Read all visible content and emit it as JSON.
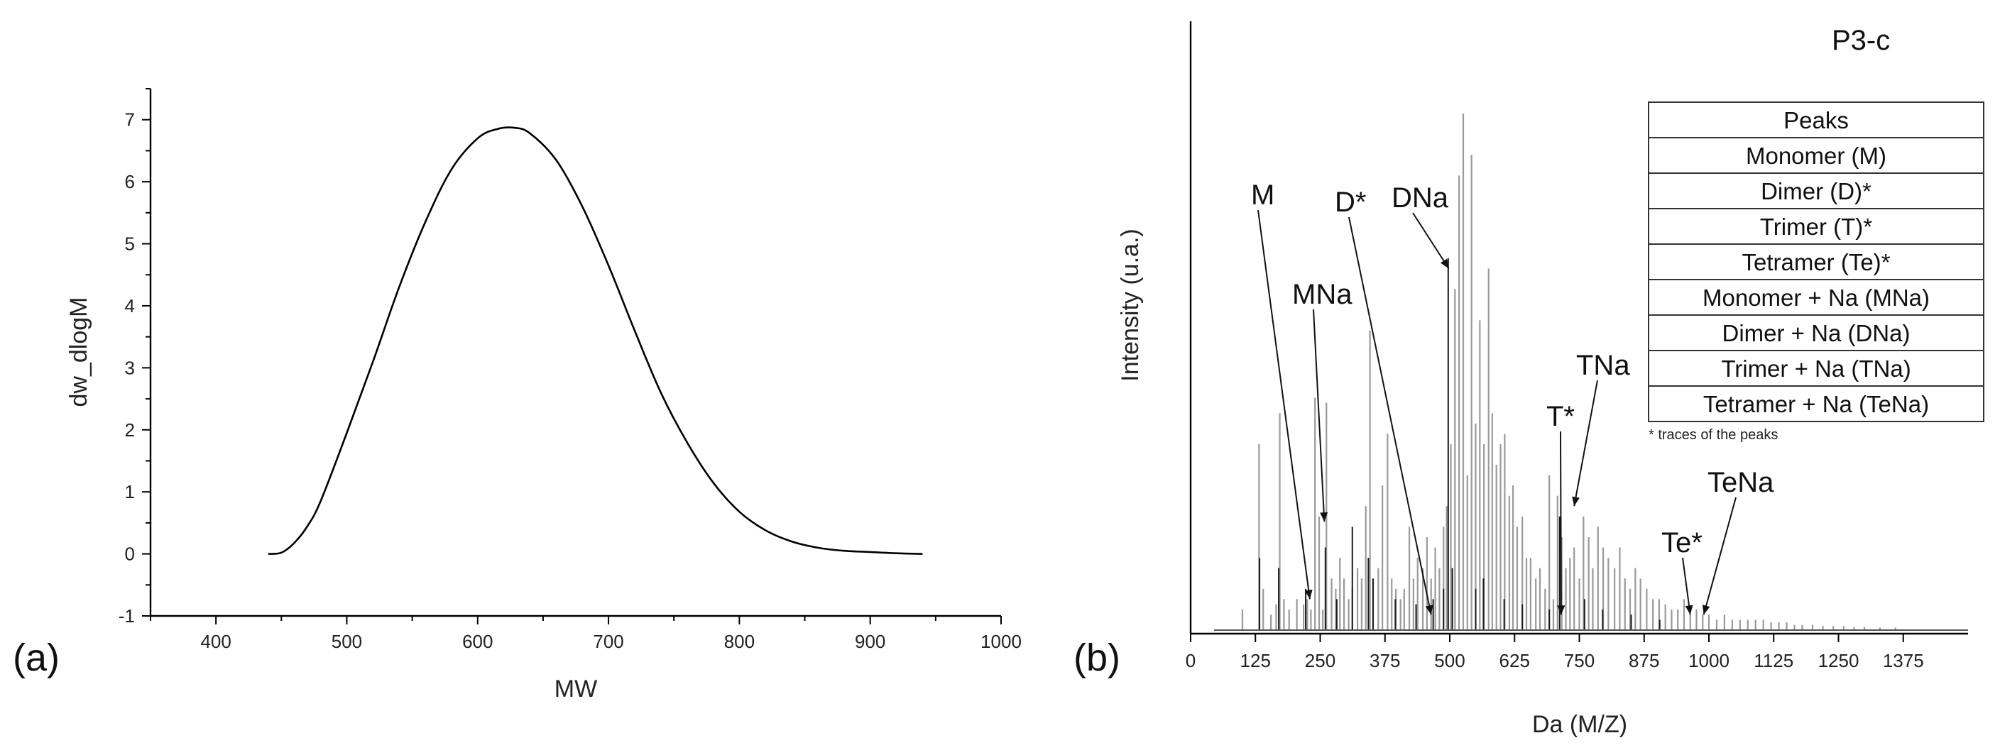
{
  "chart_data": [
    {
      "type": "line",
      "panel_label": "(a)",
      "title": "",
      "xlabel": "MW",
      "ylabel": "dw_dlogM",
      "xlim": [
        350,
        1000
      ],
      "ylim": [
        -1,
        7.5
      ],
      "xticks": [
        "400",
        "500",
        "600",
        "700",
        "800",
        "900",
        "1000"
      ],
      "yticks": [
        "-1",
        "0",
        "1",
        "2",
        "3",
        "4",
        "5",
        "6",
        "7"
      ],
      "series": [
        {
          "name": "dw_dlogM",
          "x": [
            440,
            450,
            460,
            470,
            480,
            500,
            520,
            540,
            560,
            580,
            600,
            615,
            628,
            640,
            660,
            680,
            700,
            720,
            740,
            760,
            780,
            800,
            820,
            840,
            860,
            880,
            900,
            920,
            940
          ],
          "y": [
            0.0,
            0.02,
            0.18,
            0.45,
            0.85,
            1.95,
            3.1,
            4.3,
            5.35,
            6.2,
            6.7,
            6.85,
            6.87,
            6.78,
            6.35,
            5.6,
            4.65,
            3.6,
            2.6,
            1.8,
            1.15,
            0.68,
            0.38,
            0.2,
            0.1,
            0.05,
            0.03,
            0.01,
            0.0
          ]
        }
      ]
    },
    {
      "type": "bar",
      "panel_label": "(b)",
      "title": "P3-c",
      "xlabel": "Da (M/Z)",
      "ylabel": "Intensity (u.a.)",
      "xlim": [
        0,
        1500
      ],
      "ylim": [
        0,
        100
      ],
      "xticks": [
        "0",
        "125",
        "250",
        "375",
        "500",
        "625",
        "750",
        "875",
        "1000",
        "1125",
        "1250",
        "1375"
      ],
      "x": [
        100,
        132,
        140,
        155,
        165,
        172,
        180,
        190,
        205,
        218,
        225,
        232,
        240,
        248,
        255,
        262,
        272,
        280,
        288,
        296,
        305,
        312,
        322,
        330,
        338,
        346,
        352,
        362,
        370,
        380,
        388,
        396,
        405,
        412,
        422,
        430,
        438,
        448,
        456,
        464,
        472,
        480,
        488,
        494,
        502,
        510,
        518,
        526,
        534,
        542,
        550,
        558,
        566,
        575,
        582,
        590,
        598,
        606,
        615,
        622,
        630,
        640,
        648,
        656,
        666,
        674,
        684,
        692,
        700,
        708,
        716,
        724,
        732,
        740,
        750,
        758,
        768,
        776,
        786,
        796,
        806,
        818,
        828,
        838,
        848,
        858,
        868,
        880,
        892,
        904,
        916,
        928,
        940,
        952,
        964,
        976,
        988,
        1000,
        1015,
        1030,
        1045,
        1060,
        1075,
        1090,
        1105,
        1120,
        1135,
        1150,
        1165,
        1180,
        1200,
        1220,
        1240,
        1260,
        1280,
        1300,
        1330,
        1360
      ],
      "values": [
        4,
        36,
        8,
        3,
        5,
        42,
        6,
        4,
        6,
        5,
        6,
        4,
        45,
        22,
        4,
        44,
        10,
        8,
        14,
        10,
        6,
        8,
        12,
        10,
        24,
        58,
        10,
        12,
        28,
        38,
        10,
        8,
        6,
        8,
        20,
        10,
        14,
        12,
        18,
        10,
        16,
        12,
        20,
        24,
        36,
        66,
        88,
        100,
        30,
        92,
        40,
        60,
        36,
        70,
        42,
        32,
        36,
        38,
        26,
        28,
        20,
        22,
        14,
        14,
        10,
        12,
        8,
        30,
        6,
        26,
        18,
        12,
        14,
        16,
        10,
        22,
        18,
        12,
        20,
        16,
        14,
        12,
        16,
        10,
        8,
        12,
        10,
        8,
        6,
        6,
        5,
        4,
        4,
        6,
        3,
        4,
        3,
        3,
        2,
        3,
        2,
        2,
        2,
        2,
        2,
        1.5,
        1.5,
        1.5,
        1,
        1,
        1,
        0.8,
        0.8,
        0.8,
        0.6,
        0.6,
        0.5,
        0.5
      ],
      "dark_x": [
        133,
        170,
        222,
        260,
        282,
        312,
        343,
        352,
        395,
        435,
        468,
        488,
        497,
        505,
        550,
        565,
        605,
        640,
        692,
        712,
        760,
        795,
        850,
        905
      ],
      "dark_values": [
        14,
        12,
        8,
        16,
        6,
        20,
        14,
        10,
        6,
        5,
        6,
        8,
        72,
        12,
        8,
        10,
        6,
        5,
        4,
        22,
        6,
        4,
        3,
        2
      ],
      "annotations": [
        {
          "label": "M",
          "x": 230,
          "y": 6
        },
        {
          "label": "MNa",
          "x": 258,
          "y": 21
        },
        {
          "label": "D*",
          "x": 464,
          "y": 3
        },
        {
          "label": "DNa",
          "x": 498,
          "y": 70
        },
        {
          "label": "T*",
          "x": 715,
          "y": 3
        },
        {
          "label": "TNa",
          "x": 740,
          "y": 24
        },
        {
          "label": "Te*",
          "x": 964,
          "y": 3
        },
        {
          "label": "TeNa",
          "x": 990,
          "y": 3
        }
      ],
      "legend": {
        "header": "Peaks",
        "items": [
          "Monomer (M)",
          "Dimer (D)*",
          "Trimer (T)*",
          "Tetramer (Te)*",
          "Monomer + Na (MNa)",
          "Dimer + Na (DNa)",
          "Trimer + Na (TNa)",
          "Tetramer + Na (TeNa)"
        ],
        "note": "* traces of the peaks"
      }
    }
  ]
}
